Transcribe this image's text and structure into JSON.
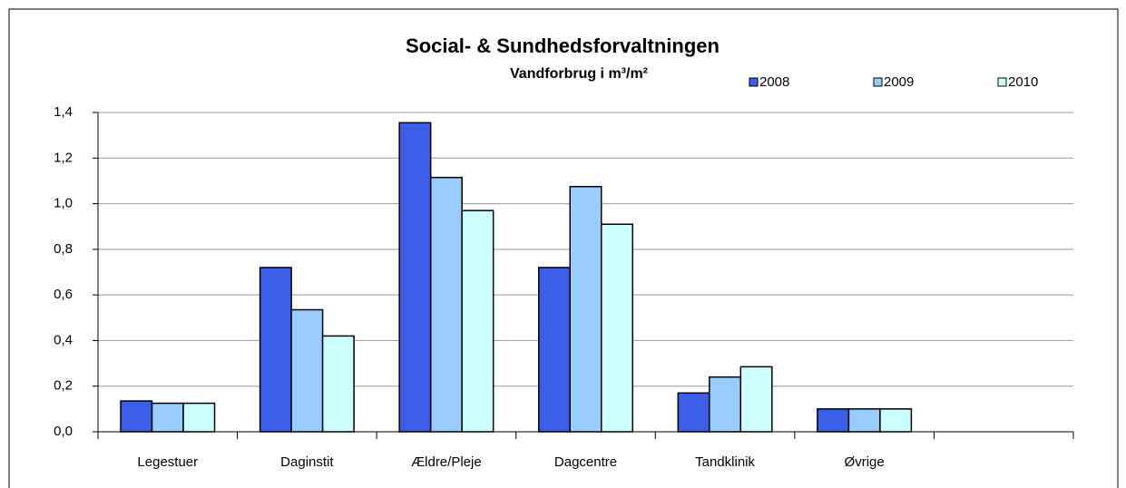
{
  "chart_data": {
    "type": "bar",
    "title": "Social- & Sundhedsforvaltningen",
    "subtitle": "Vandforbrug i m³/m²",
    "categories": [
      "Legestuer",
      "Daginstit",
      "Ældre/Pleje",
      "Dagcentre",
      "Tandklinik",
      "Øvrige",
      null
    ],
    "series": [
      {
        "name": "2008",
        "color": "#3a5fe6",
        "values": [
          0.135,
          0.72,
          1.355,
          0.72,
          0.17,
          0.1,
          null
        ]
      },
      {
        "name": "2009",
        "color": "#99ccff",
        "values": [
          0.125,
          0.535,
          1.115,
          1.075,
          0.24,
          0.1,
          null
        ]
      },
      {
        "name": "2010",
        "color": "#ccffff",
        "values": [
          0.125,
          0.42,
          0.97,
          0.91,
          0.285,
          0.1,
          null
        ]
      }
    ],
    "ylim": [
      0,
      1.4
    ],
    "yticks": [
      {
        "value": 0,
        "label": "0,0"
      },
      {
        "value": 0.2,
        "label": "0,2"
      },
      {
        "value": 0.4,
        "label": "0,4"
      },
      {
        "value": 0.6,
        "label": "0,6"
      },
      {
        "value": 0.8,
        "label": "0,8"
      },
      {
        "value": 1.0,
        "label": "1,0"
      },
      {
        "value": 1.2,
        "label": "1,2"
      },
      {
        "value": 1.4,
        "label": "1,4"
      }
    ],
    "grid": true,
    "legend": "top"
  }
}
